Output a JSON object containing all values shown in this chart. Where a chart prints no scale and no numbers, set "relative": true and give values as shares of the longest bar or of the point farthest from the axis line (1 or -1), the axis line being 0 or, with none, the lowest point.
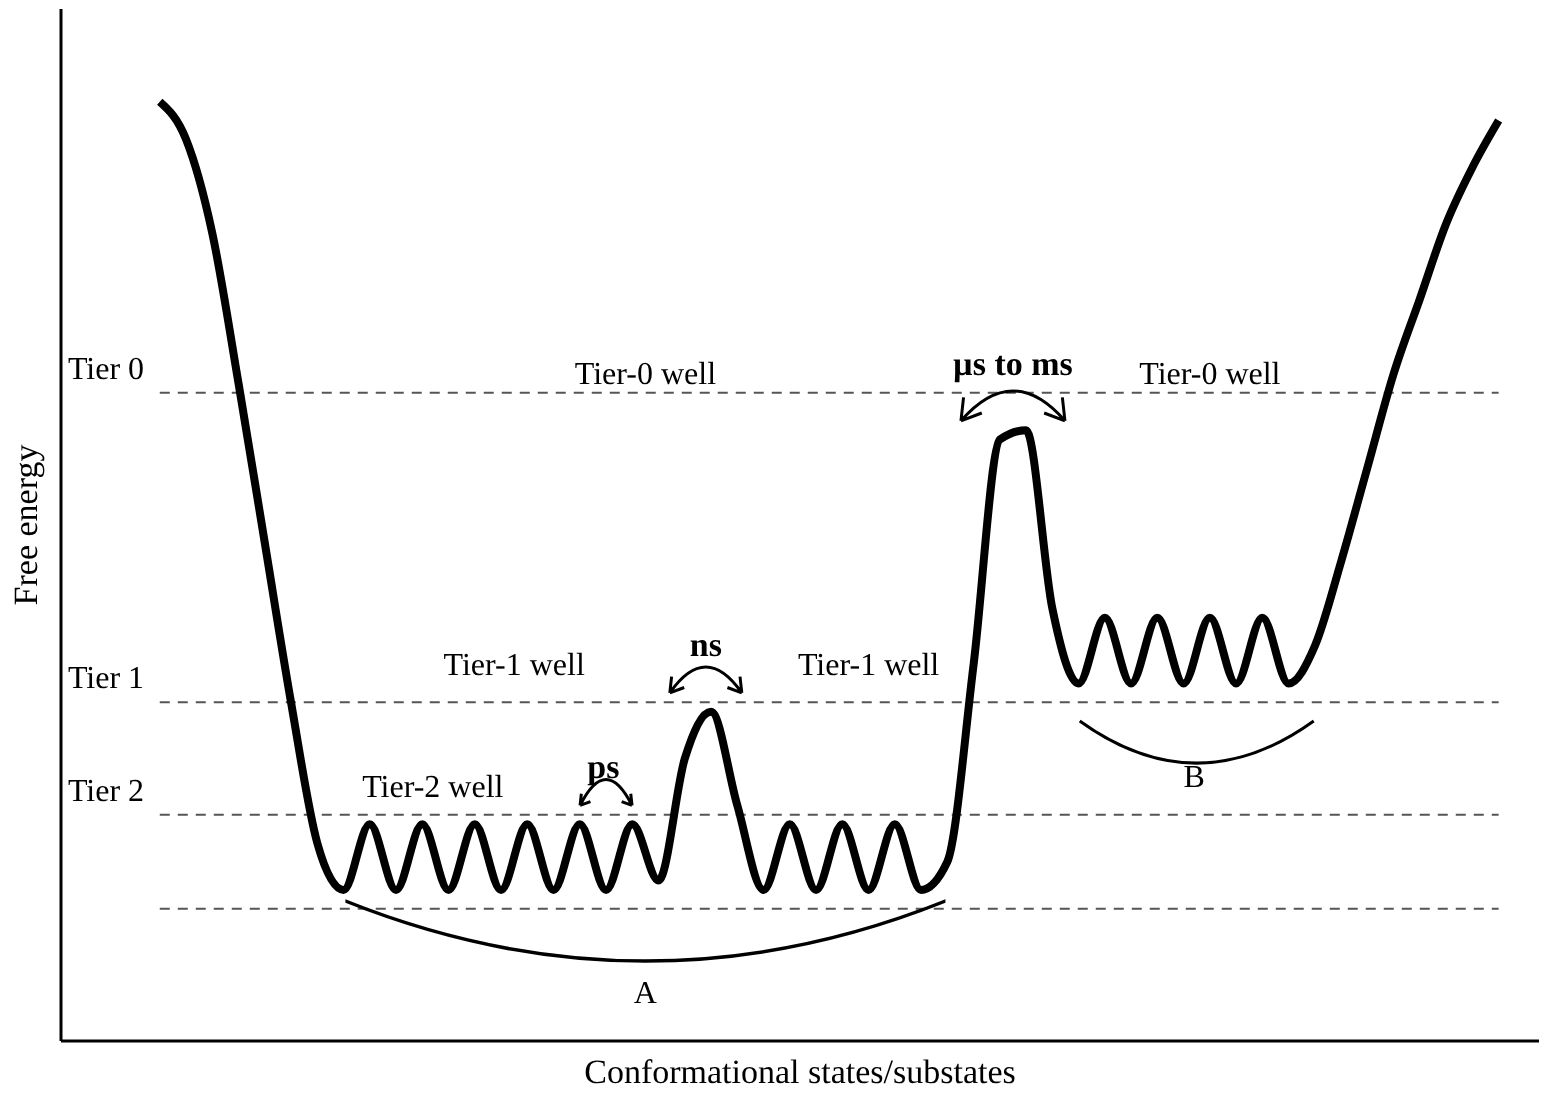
{
  "chart_data": {
    "type": "line",
    "relative": true,
    "xlabel": "Conformational states/substates",
    "ylabel": "Free energy",
    "categories": [
      null,
      null,
      null,
      null,
      null,
      null,
      null,
      null,
      null,
      null,
      null,
      null,
      null,
      null,
      null,
      null,
      null,
      null,
      null,
      null,
      null,
      null,
      null,
      null,
      null,
      null,
      null,
      null,
      null,
      null,
      null,
      null,
      null,
      null,
      null,
      null,
      null,
      null,
      null,
      null,
      null,
      null,
      null,
      null,
      null,
      null,
      null,
      null,
      null,
      null,
      null,
      null
    ],
    "series": [
      {
        "color": "#000000",
        "values": [
          1.0,
          0.96,
          0.86,
          0.7,
          0.53,
          0.36,
          0.21,
          0.16,
          0.23,
          0.16,
          0.23,
          0.16,
          0.23,
          0.16,
          0.23,
          0.16,
          0.23,
          0.16,
          0.23,
          0.17,
          0.3,
          0.35,
          0.25,
          0.16,
          0.23,
          0.16,
          0.23,
          0.16,
          0.23,
          0.16,
          0.19,
          0.4,
          0.64,
          0.65,
          0.46,
          0.38,
          0.45,
          0.38,
          0.45,
          0.38,
          0.45,
          0.38,
          0.45,
          0.38,
          0.42,
          0.51,
          0.61,
          0.71,
          0.79,
          0.87,
          0.93,
          0.98
        ]
      }
    ],
    "ref_lines": [
      {
        "axis": "y",
        "value": 0.69,
        "label": "Tier 0",
        "color": "#555555",
        "line_style": "dashed"
      },
      {
        "axis": "y",
        "value": 0.36,
        "label": "Tier 1",
        "color": "#555555",
        "line_style": "dashed"
      },
      {
        "axis": "y",
        "value": 0.24,
        "label": "Tier 2",
        "color": "#555555",
        "line_style": "dashed"
      },
      {
        "axis": "y",
        "value": 0.14,
        "label": null,
        "color": "#555555",
        "line_style": "dashed"
      }
    ],
    "annotations": [
      "Tier-0 well",
      "Tier-0 well",
      "Tier-1 well",
      "Tier-1 well",
      "Tier-2 well",
      "ps",
      "ns",
      "µs to ms",
      "A",
      "B"
    ],
    "grid": false,
    "line_style": "solid",
    "marker": "none"
  }
}
